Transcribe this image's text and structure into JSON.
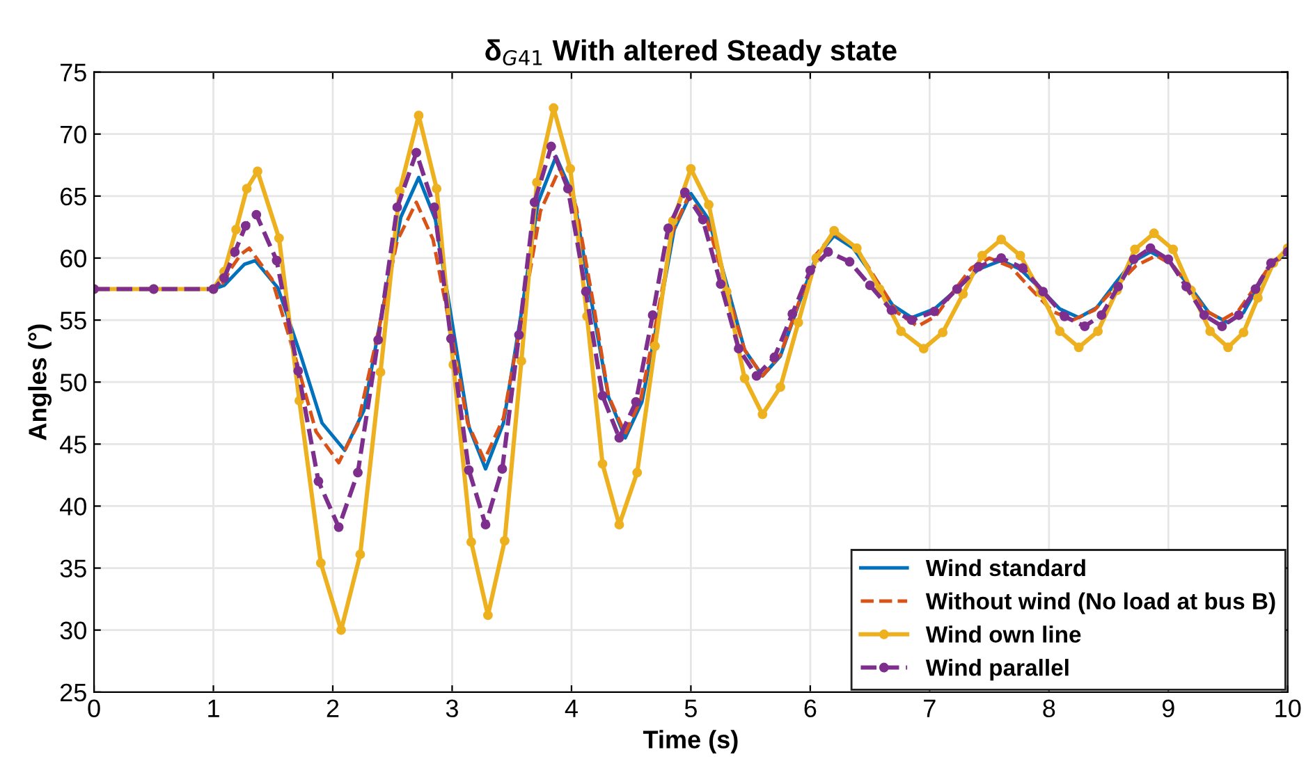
{
  "chart_data": {
    "type": "line",
    "title": "δ$_{G41}$ With altered Steady state",
    "xlabel": "Time (s)",
    "ylabel": "Angles (°)",
    "xlim": [
      0,
      10
    ],
    "xticks": [
      0,
      1,
      2,
      3,
      4,
      5,
      6,
      7,
      8,
      9,
      10
    ],
    "ylim": [
      25,
      75
    ],
    "yticks": [
      25,
      30,
      35,
      40,
      45,
      50,
      55,
      60,
      65,
      70,
      75
    ],
    "grid": true,
    "legend": "bottom right",
    "series": [
      {
        "name": "Wind standard",
        "color": "#0072bd",
        "line_style": "solid",
        "marker": "none",
        "x": [
          0,
          0.5,
          1.0,
          1.09,
          1.18,
          1.26,
          1.35,
          1.54,
          1.73,
          1.91,
          2.1,
          2.26,
          2.41,
          2.57,
          2.72,
          2.86,
          3.0,
          3.14,
          3.28,
          3.43,
          3.58,
          3.72,
          3.87,
          4.02,
          4.16,
          4.31,
          4.45,
          4.59,
          4.73,
          4.86,
          5.0,
          5.15,
          5.3,
          5.45,
          5.6,
          5.75,
          5.9,
          6.05,
          6.2,
          6.36,
          6.53,
          6.69,
          6.85,
          7.04,
          7.23,
          7.41,
          7.6,
          7.76,
          7.93,
          8.09,
          8.25,
          8.4,
          8.55,
          8.7,
          8.85,
          9.01,
          9.18,
          9.34,
          9.5,
          9.63,
          9.75,
          9.88,
          10
        ],
        "values": [
          57.5,
          57.5,
          57.5,
          57.8,
          58.7,
          59.5,
          59.8,
          57.6,
          52.2,
          46.7,
          44.5,
          47.7,
          55.5,
          63.3,
          66.5,
          63.1,
          54.8,
          46.4,
          43,
          46.7,
          55.6,
          64.5,
          68.2,
          64.9,
          56.9,
          48.8,
          45.5,
          48.4,
          55.4,
          62.3,
          65.2,
          63.1,
          57.9,
          52.6,
          50.5,
          52.1,
          56.2,
          60.1,
          61.8,
          60.8,
          58.5,
          56.2,
          55.2,
          55.9,
          57.5,
          59.1,
          59.8,
          59.1,
          57.5,
          55.9,
          55.2,
          56.0,
          57.9,
          59.7,
          60.5,
          59.7,
          57.7,
          55.6,
          54.8,
          55.6,
          57.7,
          59.7,
          60.5
        ]
      },
      {
        "name": "Without wind (No load at bus B)",
        "color": "#d95319",
        "line_style": "dashed",
        "marker": "none",
        "x": [
          0,
          0.5,
          1.0,
          1.08,
          1.15,
          1.23,
          1.3,
          1.49,
          1.68,
          1.86,
          2.05,
          2.21,
          2.38,
          2.54,
          2.7,
          2.84,
          2.99,
          3.13,
          3.27,
          3.43,
          3.59,
          3.74,
          3.9,
          4.04,
          4.18,
          4.31,
          4.45,
          4.58,
          4.72,
          4.85,
          4.98,
          5.14,
          5.29,
          5.45,
          5.6,
          5.75,
          5.9,
          6.05,
          6.2,
          6.38,
          6.55,
          6.73,
          6.9,
          7.05,
          7.2,
          7.35,
          7.5,
          7.68,
          7.85,
          8.03,
          8.2,
          8.38,
          8.55,
          8.73,
          8.9,
          9.04,
          9.18,
          9.31,
          9.45,
          9.59,
          9.73,
          9.86,
          10
        ],
        "values": [
          57.5,
          57.5,
          57.5,
          58.0,
          59.2,
          60.3,
          60.8,
          58.3,
          52.2,
          46.0,
          43.5,
          46.6,
          54.0,
          61.4,
          64.5,
          61.5,
          54.1,
          46.7,
          43.7,
          47.1,
          55.5,
          63.8,
          67.2,
          64.1,
          56.5,
          48.9,
          45.8,
          48.6,
          55.4,
          62.2,
          65,
          62.9,
          57.8,
          52.6,
          50.5,
          52.2,
          56.3,
          60.3,
          62,
          60.9,
          58.3,
          55.6,
          54.5,
          55.3,
          57.3,
          59.2,
          60,
          59.3,
          57.5,
          55.7,
          55,
          55.8,
          57.6,
          59.4,
          60.2,
          59.4,
          57.6,
          55.8,
          55,
          55.8,
          57.7,
          59.5,
          60.3
        ]
      },
      {
        "name": "Wind own line",
        "color": "#edb120",
        "line_style": "solid",
        "marker": "circle",
        "x": [
          0,
          0.5,
          1.0,
          1.09,
          1.19,
          1.28,
          1.37,
          1.55,
          1.72,
          1.9,
          2.07,
          2.23,
          2.4,
          2.56,
          2.72,
          2.87,
          3.01,
          3.16,
          3.3,
          3.44,
          3.58,
          3.71,
          3.85,
          3.99,
          4.13,
          4.26,
          4.4,
          4.55,
          4.7,
          4.85,
          5.0,
          5.15,
          5.3,
          5.45,
          5.6,
          5.75,
          5.9,
          6.05,
          6.2,
          6.39,
          6.58,
          6.76,
          6.95,
          7.11,
          7.28,
          7.44,
          7.6,
          7.76,
          7.93,
          8.09,
          8.25,
          8.41,
          8.57,
          8.72,
          8.88,
          9.04,
          9.19,
          9.35,
          9.5,
          9.63,
          9.75,
          9.88,
          10
        ],
        "values": [
          57.5,
          57.5,
          57.5,
          58.9,
          62.3,
          65.6,
          67,
          61.6,
          48.5,
          35.4,
          30,
          36.1,
          50.8,
          65.4,
          71.5,
          65.6,
          51.4,
          37.1,
          31.2,
          37.2,
          51.7,
          66.1,
          72.1,
          67.2,
          55.3,
          43.4,
          38.5,
          42.7,
          52.9,
          63.0,
          67.2,
          64.3,
          57.3,
          50.3,
          47.4,
          49.6,
          54.8,
          60.0,
          62.2,
          60.8,
          57.5,
          54.1,
          52.7,
          54.0,
          57.1,
          60.2,
          61.5,
          60.2,
          57.2,
          54.1,
          52.8,
          54.1,
          57.4,
          60.7,
          62,
          60.7,
          57.4,
          54.1,
          52.8,
          54.0,
          56.8,
          59.6,
          60.8
        ]
      },
      {
        "name": "Wind parallel",
        "color": "#7e2f8e",
        "line_style": "dashed",
        "marker": "circle",
        "x": [
          0,
          0.5,
          1.0,
          1.09,
          1.18,
          1.27,
          1.36,
          1.53,
          1.71,
          1.88,
          2.05,
          2.21,
          2.38,
          2.54,
          2.7,
          2.85,
          2.99,
          3.14,
          3.28,
          3.42,
          3.56,
          3.69,
          3.83,
          3.97,
          4.12,
          4.26,
          4.4,
          4.54,
          4.68,
          4.81,
          4.95,
          5.1,
          5.25,
          5.4,
          5.55,
          5.7,
          5.85,
          6.0,
          6.15,
          6.33,
          6.5,
          6.68,
          6.85,
          7.04,
          7.23,
          7.41,
          7.6,
          7.78,
          7.95,
          8.13,
          8.3,
          8.44,
          8.58,
          8.71,
          8.85,
          9.0,
          9.15,
          9.3,
          9.45,
          9.59,
          9.73,
          9.86,
          10
        ],
        "values": [
          57.5,
          57.5,
          57.5,
          58.4,
          60.5,
          62.6,
          63.5,
          59.8,
          50.9,
          42.0,
          38.3,
          42.7,
          53.4,
          64.1,
          68.5,
          64.1,
          53.5,
          42.9,
          38.5,
          43.0,
          53.8,
          64.5,
          69,
          65.6,
          57.3,
          48.9,
          45.5,
          48.4,
          55.4,
          62.4,
          65.3,
          63.1,
          57.9,
          52.7,
          50.5,
          52.0,
          55.5,
          59.0,
          60.5,
          59.7,
          57.8,
          55.8,
          55,
          55.7,
          57.5,
          59.3,
          60,
          59.2,
          57.3,
          55.3,
          54.5,
          55.4,
          57.7,
          59.9,
          60.8,
          59.9,
          57.7,
          55.4,
          54.5,
          55.4,
          57.5,
          59.6,
          60.5
        ]
      }
    ]
  }
}
